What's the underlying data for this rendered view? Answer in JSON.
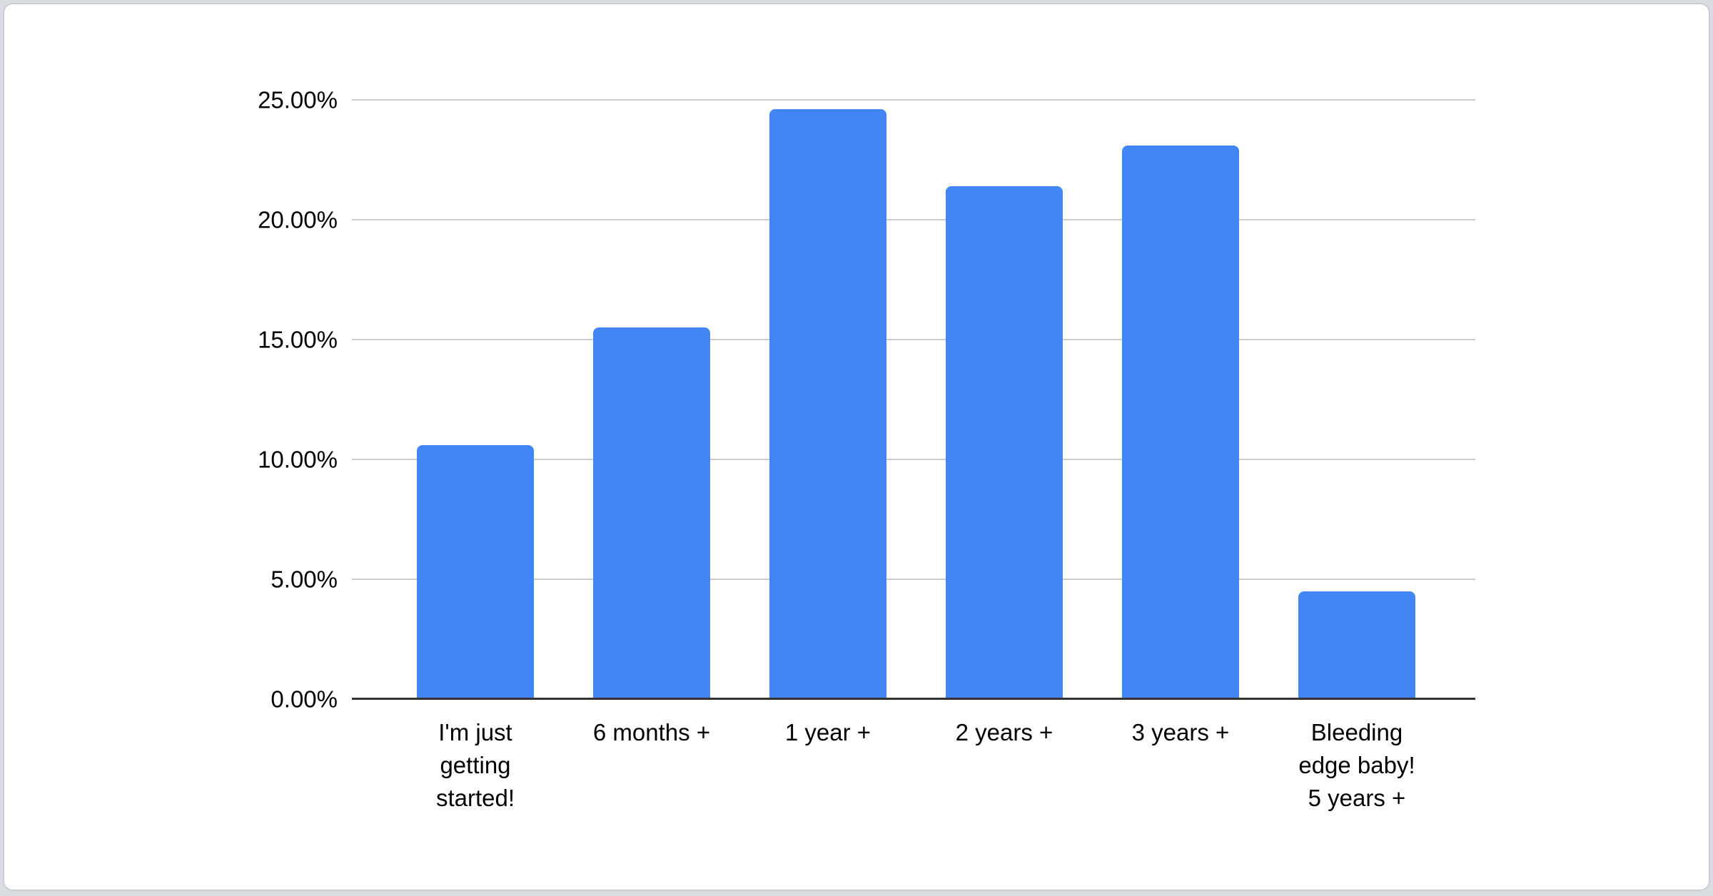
{
  "page": {
    "background_color": "#d9dde1"
  },
  "card": {
    "background_color": "#ffffff",
    "border_color": "#c9ced3"
  },
  "chart_data": {
    "type": "bar",
    "title": "",
    "xlabel": "",
    "ylabel": "",
    "categories": [
      "I'm just getting started!",
      "6 months +",
      "1 year +",
      "2 years +",
      "3 years +",
      "Bleeding edge baby! 5 years +"
    ],
    "category_lines": [
      [
        "I'm just",
        "getting",
        "started!"
      ],
      [
        "6 months +"
      ],
      [
        "1 year +"
      ],
      [
        "2 years +"
      ],
      [
        "3 years +"
      ],
      [
        "Bleeding",
        "edge baby!",
        "5 years +"
      ]
    ],
    "values": [
      10.6,
      15.5,
      24.6,
      21.4,
      23.1,
      4.5
    ],
    "unit": "%",
    "ylim": [
      0,
      25
    ],
    "y_ticks": [
      {
        "value": 0,
        "label": "0.00%"
      },
      {
        "value": 5,
        "label": "5.00%"
      },
      {
        "value": 10,
        "label": "10.00%"
      },
      {
        "value": 15,
        "label": "15.00%"
      },
      {
        "value": 20,
        "label": "20.00%"
      },
      {
        "value": 25,
        "label": "25.00%"
      }
    ],
    "grid": true,
    "legend": "none",
    "colors": {
      "bar": "#4285F4",
      "gridline": "#cccccc",
      "axis_line": "#333333",
      "tick_text": "#000000"
    }
  }
}
